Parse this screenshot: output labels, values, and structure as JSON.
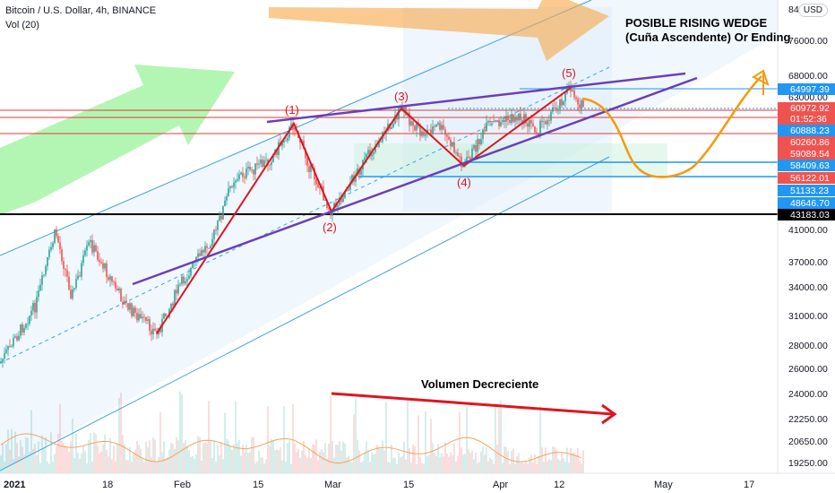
{
  "header": {
    "symbol_line": "Bitcoin / U.S. Dollar, 4h, BINANCE",
    "indicator_line": "Vol (20)",
    "currency": "USD"
  },
  "annotations": {
    "title": "POSIBLE RISING WEDGE",
    "subtitle": "(Cuña Ascendente) Or Ending",
    "volume_note": "Volumen Decreciente",
    "waves": [
      "(1)",
      "(2)",
      "(3)",
      "(4)",
      "(5)"
    ]
  },
  "colors": {
    "candle_up": "#26a69a",
    "candle_down": "#ef5350",
    "wave_line": "#e0141e",
    "wedge_line": "#673ab7",
    "channel_line": "#2196f3",
    "projection": "#f29b0c",
    "arrow_green": "#7cf07c",
    "arrow_orange": "#f7b25a",
    "volume_ma": "#f5a35a"
  },
  "chart_data": {
    "type": "candlestick",
    "symbol": "Bitcoin / U.S. Dollar",
    "interval": "4h",
    "exchange": "BINANCE",
    "price_axis": {
      "scale": "log",
      "ticks": [
        "84000.00",
        "76000.00",
        "68000.00",
        "63000.00",
        "41000.00",
        "37000.00",
        "34000.00",
        "31000.00",
        "28000.00",
        "26000.00",
        "24000.00",
        "22250.00",
        "20650.00",
        "19250.00"
      ]
    },
    "time_axis": {
      "ticks": [
        "2021",
        "18",
        "Feb",
        "15",
        "Mar",
        "15",
        "Apr",
        "12",
        "May",
        "17"
      ]
    },
    "price_labels": [
      {
        "text": "64997.39",
        "kind": "blue"
      },
      {
        "text": "60972.92",
        "kind": "red"
      },
      {
        "text": "01:52:36",
        "kind": "red"
      },
      {
        "text": "60888.23",
        "kind": "blue"
      },
      {
        "text": "60260.86",
        "kind": "red"
      },
      {
        "text": "59089.54",
        "kind": "red"
      },
      {
        "text": "58409.63",
        "kind": "blue"
      },
      {
        "text": "56122.01",
        "kind": "red"
      },
      {
        "text": "51133.23",
        "kind": "blue"
      },
      {
        "text": "48646.70",
        "kind": "blue"
      },
      {
        "text": "43183.03",
        "kind": "black"
      }
    ],
    "waves": [
      {
        "label": "(1)",
        "price": 58000
      },
      {
        "label": "(2)",
        "price": 43500
      },
      {
        "label": "(3)",
        "price": 61500
      },
      {
        "label": "(4)",
        "price": 50500
      },
      {
        "label": "(5)",
        "price": 64900
      }
    ],
    "wedge": {
      "upper": [
        57800,
        67000
      ],
      "lower": [
        35000,
        65500
      ]
    },
    "projection_path_prices": [
      61000,
      55500,
      48000,
      47000,
      51000,
      60000,
      68000
    ],
    "horizontal_levels": [
      {
        "price": 64997.39,
        "color": "blue"
      },
      {
        "price": 60888.23,
        "color": "blue"
      },
      {
        "price": 58409.63,
        "color": "blue"
      },
      {
        "price": 51133.23,
        "color": "blue"
      },
      {
        "price": 43183.03,
        "color": "black"
      },
      {
        "price": 60260.86,
        "color": "red"
      },
      {
        "price": 59089.54,
        "color": "red"
      },
      {
        "price": 56122.01,
        "color": "red"
      }
    ],
    "volume": {
      "series_name": "Vol (20)",
      "trend": "decreasing"
    }
  }
}
